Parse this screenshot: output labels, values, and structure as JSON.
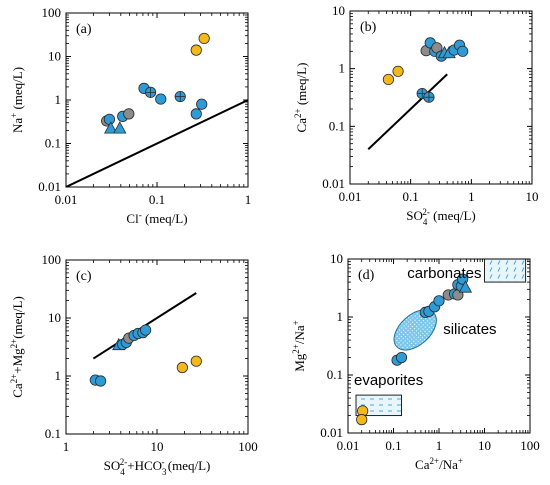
{
  "colors": {
    "blue": "#2e9bd6",
    "gray": "#8c8c8c",
    "gold": "#f2b918",
    "outline": "#2a2a2a",
    "carbonate_fill": "#e8f6fc",
    "carbonate_mark": "#3aa3d8",
    "silicate_fill": "#7cc6ea",
    "evaporite_fill": "#e8f6fc"
  },
  "chart_data": [
    {
      "panel": "(a)",
      "type": "scatter",
      "xscale": "log",
      "yscale": "log",
      "xlim": [
        0.01,
        1
      ],
      "ylim": [
        0.01,
        100
      ],
      "xticks": [
        "0.01",
        "0.1",
        "1"
      ],
      "yticks": [
        "0.01",
        "0.1",
        "1",
        "10",
        "100"
      ],
      "xlabel": [
        "Cl",
        "-",
        " (meq/L)"
      ],
      "ylabel": [
        "Na",
        "+",
        " (meq/L)"
      ],
      "line": [
        [
          0.01,
          0.01
        ],
        [
          1,
          1
        ]
      ],
      "points": [
        {
          "x": 0.028,
          "y": 0.33,
          "color": "gray",
          "shape": "circle"
        },
        {
          "x": 0.03,
          "y": 0.36,
          "color": "blue",
          "shape": "circle"
        },
        {
          "x": 0.031,
          "y": 0.22,
          "color": "blue",
          "shape": "triangle"
        },
        {
          "x": 0.039,
          "y": 0.22,
          "color": "blue",
          "shape": "triangle"
        },
        {
          "x": 0.042,
          "y": 0.42,
          "color": "blue",
          "shape": "circle"
        },
        {
          "x": 0.049,
          "y": 0.48,
          "color": "gray",
          "shape": "circle"
        },
        {
          "x": 0.072,
          "y": 1.85,
          "color": "blue",
          "shape": "circle"
        },
        {
          "x": 0.085,
          "y": 1.5,
          "color": "blue",
          "shape": "cross"
        },
        {
          "x": 0.11,
          "y": 1.05,
          "color": "blue",
          "shape": "circle"
        },
        {
          "x": 0.18,
          "y": 1.2,
          "color": "blue",
          "shape": "cross"
        },
        {
          "x": 0.27,
          "y": 0.48,
          "color": "blue",
          "shape": "circle"
        },
        {
          "x": 0.31,
          "y": 0.8,
          "color": "blue",
          "shape": "circle"
        },
        {
          "x": 0.27,
          "y": 14.0,
          "color": "gold",
          "shape": "circle"
        },
        {
          "x": 0.33,
          "y": 26.0,
          "color": "gold",
          "shape": "circle"
        }
      ]
    },
    {
      "panel": "(b)",
      "type": "scatter",
      "xscale": "log",
      "yscale": "log",
      "xlim": [
        0.01,
        10
      ],
      "ylim": [
        0.01,
        10
      ],
      "xticks": [
        "0.01",
        "0.1",
        "1",
        "10"
      ],
      "yticks": [
        "0.01",
        "0.1",
        "1",
        "10"
      ],
      "xlabel": [
        "SO",
        "4",
        "2-",
        " (meq/L)"
      ],
      "ylabel": [
        "Ca",
        "2+",
        " (meq/L)"
      ],
      "line": [
        [
          0.02,
          0.04
        ],
        [
          0.4,
          0.8
        ]
      ],
      "points": [
        {
          "x": 0.043,
          "y": 0.65,
          "color": "gold",
          "shape": "circle"
        },
        {
          "x": 0.062,
          "y": 0.9,
          "color": "gold",
          "shape": "circle"
        },
        {
          "x": 0.155,
          "y": 0.37,
          "color": "blue",
          "shape": "cross"
        },
        {
          "x": 0.2,
          "y": 0.32,
          "color": "blue",
          "shape": "cross"
        },
        {
          "x": 0.18,
          "y": 2.05,
          "color": "gray",
          "shape": "circle"
        },
        {
          "x": 0.21,
          "y": 2.8,
          "color": "blue",
          "shape": "circle"
        },
        {
          "x": 0.25,
          "y": 2.0,
          "color": "blue",
          "shape": "circle"
        },
        {
          "x": 0.27,
          "y": 2.3,
          "color": "gray",
          "shape": "circle"
        },
        {
          "x": 0.32,
          "y": 1.65,
          "color": "blue",
          "shape": "circle"
        },
        {
          "x": 0.36,
          "y": 1.85,
          "color": "blue",
          "shape": "triangle"
        },
        {
          "x": 0.43,
          "y": 1.85,
          "color": "blue",
          "shape": "triangle"
        },
        {
          "x": 0.52,
          "y": 2.1,
          "color": "blue",
          "shape": "circle"
        },
        {
          "x": 0.64,
          "y": 2.55,
          "color": "blue",
          "shape": "circle"
        },
        {
          "x": 0.72,
          "y": 2.0,
          "color": "blue",
          "shape": "circle"
        }
      ]
    },
    {
      "panel": "(c)",
      "type": "scatter",
      "xscale": "log",
      "yscale": "log",
      "xlim": [
        1,
        100
      ],
      "ylim": [
        0.1,
        100
      ],
      "xticks": [
        "1",
        "10",
        "100"
      ],
      "yticks": [
        "0.1",
        "1",
        "10",
        "100"
      ],
      "xlabel": [
        "SO",
        "4",
        "2-",
        "+HCO",
        "3",
        "-",
        " (meq/L)"
      ],
      "ylabel": [
        "Ca",
        "2+",
        "+Mg",
        "2+",
        "(meq/L)"
      ],
      "line": [
        [
          2,
          2
        ],
        [
          27,
          27
        ]
      ],
      "points": [
        {
          "x": 2.1,
          "y": 0.85,
          "color": "blue",
          "shape": "circle"
        },
        {
          "x": 2.4,
          "y": 0.82,
          "color": "blue",
          "shape": "circle"
        },
        {
          "x": 3.8,
          "y": 3.4,
          "color": "blue",
          "shape": "triangle"
        },
        {
          "x": 4.2,
          "y": 3.5,
          "color": "blue",
          "shape": "circle"
        },
        {
          "x": 4.6,
          "y": 3.8,
          "color": "blue",
          "shape": "circle"
        },
        {
          "x": 4.9,
          "y": 4.5,
          "color": "gray",
          "shape": "circle"
        },
        {
          "x": 5.6,
          "y": 5.0,
          "color": "blue",
          "shape": "circle"
        },
        {
          "x": 6.2,
          "y": 5.4,
          "color": "blue",
          "shape": "circle"
        },
        {
          "x": 7.0,
          "y": 5.6,
          "color": "blue",
          "shape": "circle"
        },
        {
          "x": 7.5,
          "y": 6.2,
          "color": "blue",
          "shape": "circle"
        },
        {
          "x": 19.0,
          "y": 1.4,
          "color": "gold",
          "shape": "circle"
        },
        {
          "x": 27.0,
          "y": 1.8,
          "color": "gold",
          "shape": "circle"
        }
      ]
    },
    {
      "panel": "(d)",
      "type": "scatter",
      "xscale": "log",
      "yscale": "log",
      "xlim": [
        0.01,
        100
      ],
      "ylim": [
        0.01,
        10
      ],
      "xticks": [
        "0.01",
        "0.1",
        "1",
        "10",
        "100"
      ],
      "yticks": [
        "0.01",
        "0.1",
        "1",
        "10"
      ],
      "xlabel": [
        "Ca",
        "2+",
        "/Na",
        "+"
      ],
      "ylabel": [
        "Mg",
        "2+",
        "/Na",
        "+"
      ],
      "regions": [
        {
          "label": "carbonates",
          "x": [
            10,
            80
          ],
          "y": [
            4,
            10
          ],
          "pattern": "ticks"
        },
        {
          "label": "silicates",
          "cx": 0.3,
          "cy": 0.6,
          "pattern": "dots"
        },
        {
          "label": "evaporites",
          "x": [
            0.015,
            0.15
          ],
          "y": [
            0.02,
            0.045
          ],
          "pattern": "dashes"
        }
      ],
      "points": [
        {
          "x": 0.12,
          "y": 0.18,
          "color": "blue",
          "shape": "circle"
        },
        {
          "x": 0.15,
          "y": 0.2,
          "color": "blue",
          "shape": "circle"
        },
        {
          "x": 0.5,
          "y": 1.2,
          "color": "blue",
          "shape": "circle"
        },
        {
          "x": 0.6,
          "y": 1.25,
          "color": "blue",
          "shape": "circle"
        },
        {
          "x": 0.8,
          "y": 1.5,
          "color": "blue",
          "shape": "circle"
        },
        {
          "x": 1.0,
          "y": 1.9,
          "color": "blue",
          "shape": "circle"
        },
        {
          "x": 1.6,
          "y": 2.4,
          "color": "gray",
          "shape": "circle"
        },
        {
          "x": 2.2,
          "y": 2.5,
          "color": "blue",
          "shape": "circle"
        },
        {
          "x": 2.6,
          "y": 3.6,
          "color": "blue",
          "shape": "circle"
        },
        {
          "x": 2.6,
          "y": 2.4,
          "color": "gray",
          "shape": "circle"
        },
        {
          "x": 3.1,
          "y": 3.4,
          "color": "blue",
          "shape": "circle"
        },
        {
          "x": 3.3,
          "y": 4.5,
          "color": "blue",
          "shape": "circle"
        },
        {
          "x": 3.8,
          "y": 3.2,
          "color": "blue",
          "shape": "triangle"
        },
        {
          "x": 0.021,
          "y": 0.024,
          "color": "gold",
          "shape": "circle"
        },
        {
          "x": 0.02,
          "y": 0.017,
          "color": "gold",
          "shape": "circle"
        }
      ]
    }
  ]
}
